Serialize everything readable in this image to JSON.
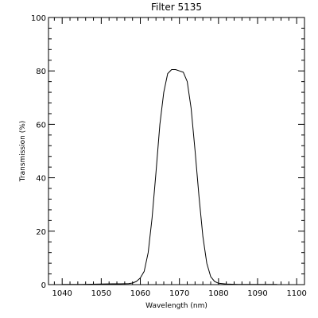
{
  "chart_data": {
    "type": "line",
    "title": "Filter 5135",
    "xlabel": "Wavelength (nm)",
    "ylabel": "Transmission (%)",
    "xlim": [
      1036.5,
      1102
    ],
    "ylim": [
      0,
      100
    ],
    "xticks": [
      1040,
      1050,
      1060,
      1070,
      1080,
      1090,
      1100
    ],
    "yticks": [
      0,
      20,
      40,
      60,
      80,
      100
    ],
    "x_minor_step": 2,
    "y_minor_step": 4,
    "grid": false,
    "legend": "none",
    "series": [
      {
        "color": "#000000",
        "points": [
          [
            1040,
            0.1
          ],
          [
            1045,
            0.1
          ],
          [
            1050,
            0.2
          ],
          [
            1053,
            0.3
          ],
          [
            1055,
            0.3
          ],
          [
            1057,
            0.4
          ],
          [
            1058,
            0.6
          ],
          [
            1059,
            1.2
          ],
          [
            1060,
            2.5
          ],
          [
            1061,
            5
          ],
          [
            1062,
            12
          ],
          [
            1063,
            25
          ],
          [
            1064,
            42
          ],
          [
            1065,
            60
          ],
          [
            1066,
            72
          ],
          [
            1067,
            79
          ],
          [
            1068,
            80.5
          ],
          [
            1069,
            80.5
          ],
          [
            1070,
            80
          ],
          [
            1071,
            79.5
          ],
          [
            1072,
            76
          ],
          [
            1073,
            66
          ],
          [
            1074,
            50
          ],
          [
            1075,
            33
          ],
          [
            1076,
            18
          ],
          [
            1077,
            8
          ],
          [
            1078,
            3
          ],
          [
            1079,
            1.2
          ],
          [
            1080,
            0.5
          ],
          [
            1082,
            0.2
          ],
          [
            1085,
            0.1
          ],
          [
            1090,
            0.1
          ],
          [
            1095,
            0.1
          ]
        ]
      }
    ]
  }
}
